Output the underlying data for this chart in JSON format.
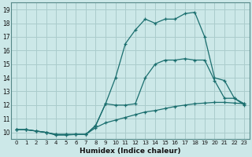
{
  "xlabel": "Humidex (Indice chaleur)",
  "xlim": [
    -0.5,
    23.5
  ],
  "ylim": [
    9.5,
    19.5
  ],
  "xticks": [
    0,
    1,
    2,
    3,
    4,
    5,
    6,
    7,
    8,
    9,
    10,
    11,
    12,
    13,
    14,
    15,
    16,
    17,
    18,
    19,
    20,
    21,
    22,
    23
  ],
  "yticks": [
    10,
    11,
    12,
    13,
    14,
    15,
    16,
    17,
    18,
    19
  ],
  "bg_color": "#cce8e8",
  "grid_color": "#aacccc",
  "line_color": "#1a6e6e",
  "curve1_x": [
    0,
    1,
    2,
    3,
    4,
    5,
    6,
    7,
    8,
    9,
    10,
    11,
    12,
    13,
    14,
    15,
    16,
    17,
    18,
    19,
    20,
    21,
    22,
    23
  ],
  "curve1_y": [
    10.2,
    10.2,
    10.1,
    10.0,
    9.8,
    9.8,
    9.85,
    9.85,
    10.35,
    10.7,
    10.9,
    11.1,
    11.3,
    11.5,
    11.6,
    11.75,
    11.9,
    12.0,
    12.1,
    12.15,
    12.2,
    12.2,
    12.15,
    12.1
  ],
  "curve2_x": [
    0,
    1,
    2,
    3,
    4,
    5,
    6,
    7,
    8,
    9,
    10,
    11,
    12,
    13,
    14,
    15,
    16,
    17,
    18,
    19,
    20,
    21,
    22,
    23
  ],
  "curve2_y": [
    10.2,
    10.2,
    10.1,
    10.0,
    9.85,
    9.85,
    9.85,
    9.85,
    10.5,
    12.1,
    12.0,
    12.0,
    12.1,
    14.0,
    15.0,
    15.3,
    15.3,
    15.4,
    15.3,
    15.3,
    13.8,
    12.5,
    12.5,
    12.1
  ],
  "curve3_x": [
    0,
    1,
    2,
    3,
    4,
    5,
    6,
    7,
    8,
    9,
    10,
    11,
    12,
    13,
    14,
    15,
    16,
    17,
    18,
    19,
    20,
    21,
    22,
    23
  ],
  "curve3_y": [
    10.2,
    10.2,
    10.1,
    10.0,
    9.85,
    9.85,
    9.85,
    9.85,
    10.5,
    12.1,
    14.0,
    16.5,
    17.5,
    18.3,
    18.0,
    18.3,
    18.3,
    18.7,
    18.8,
    17.0,
    14.0,
    13.8,
    12.5,
    12.0
  ]
}
